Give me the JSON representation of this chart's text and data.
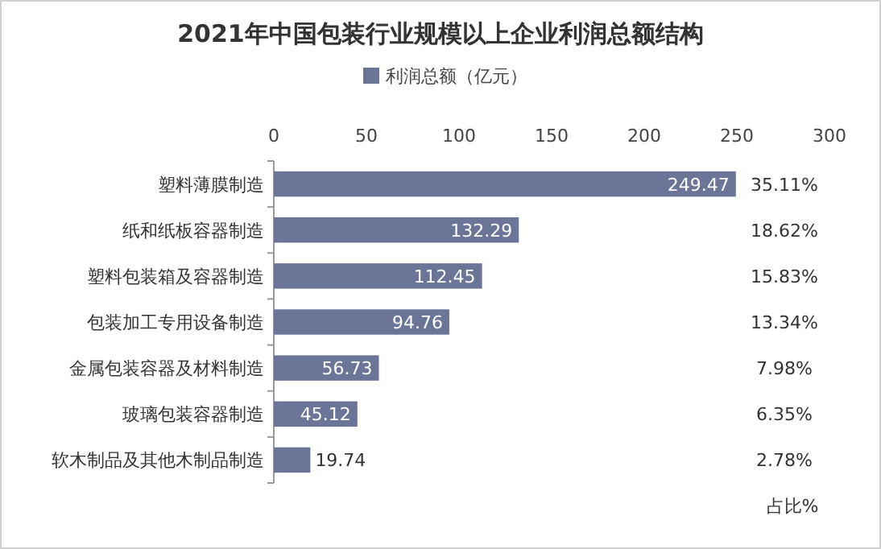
{
  "chart_data": {
    "type": "bar",
    "orientation": "horizontal",
    "title": "2021年中国包装行业规模以上企业利润总额结构",
    "categories": [
      "塑料薄膜制造",
      "纸和纸板容器制造",
      "塑料包装箱及容器制造",
      "包装加工专用设备制造",
      "金属包装容器及材料制造",
      "玻璃包装容器制造",
      "软木制品及其他木制品制造"
    ],
    "series": [
      {
        "name": "利润总额（亿元）",
        "color": "#6b7597",
        "values": [
          249.47,
          132.29,
          112.45,
          94.76,
          56.73,
          45.12,
          19.74
        ]
      }
    ],
    "xlim": [
      0,
      300
    ],
    "xticks": [
      0,
      50,
      100,
      150,
      200,
      250,
      300
    ],
    "data_labels": true,
    "legend": "top",
    "grid": false,
    "annotations": [
      "占比%",
      "35.11%",
      "18.62%",
      "15.83%",
      "13.34%",
      "7.98%",
      "6.35%",
      "2.78%"
    ]
  }
}
